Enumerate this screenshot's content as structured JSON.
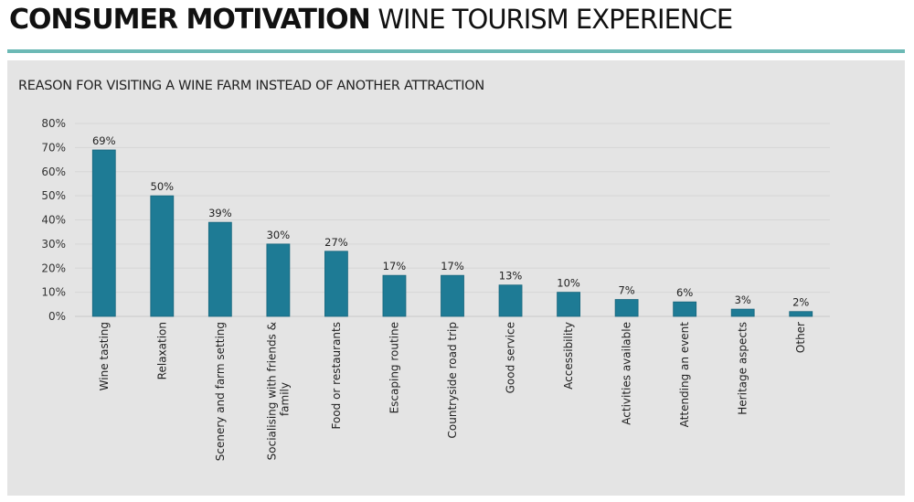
{
  "header": {
    "title_bold": "CONSUMER MOTIVATION",
    "title_light": "WINE TOURISM EXPERIENCE"
  },
  "colors": {
    "bar": "#1e7b95",
    "rule": "#6cb9b5",
    "panel": "#e4e4e4"
  },
  "chart_data": {
    "type": "bar",
    "title": "REASON FOR VISITING A WINE FARM INSTEAD OF ANOTHER ATTRACTION",
    "xlabel": "",
    "ylabel": "",
    "ylim": [
      0,
      80
    ],
    "yticks": [
      "0%",
      "10%",
      "20%",
      "30%",
      "40%",
      "50%",
      "60%",
      "70%",
      "80%"
    ],
    "grid": true,
    "categories": [
      "Wine tasting",
      "Relaxation",
      "Scenery and farm setting",
      "Socialising with friends & family",
      "Food or restaurants",
      "Escaping routine",
      "Countryside road trip",
      "Good service",
      "Accessibility",
      "Activities available",
      "Attending an event",
      "Heritage aspects",
      "Other"
    ],
    "values": [
      69,
      50,
      39,
      30,
      27,
      17,
      17,
      13,
      10,
      7,
      6,
      3,
      2
    ],
    "labels": [
      "69%",
      "50%",
      "39%",
      "30%",
      "27%",
      "17%",
      "17%",
      "13%",
      "10%",
      "7%",
      "6%",
      "3%",
      "2%"
    ]
  }
}
